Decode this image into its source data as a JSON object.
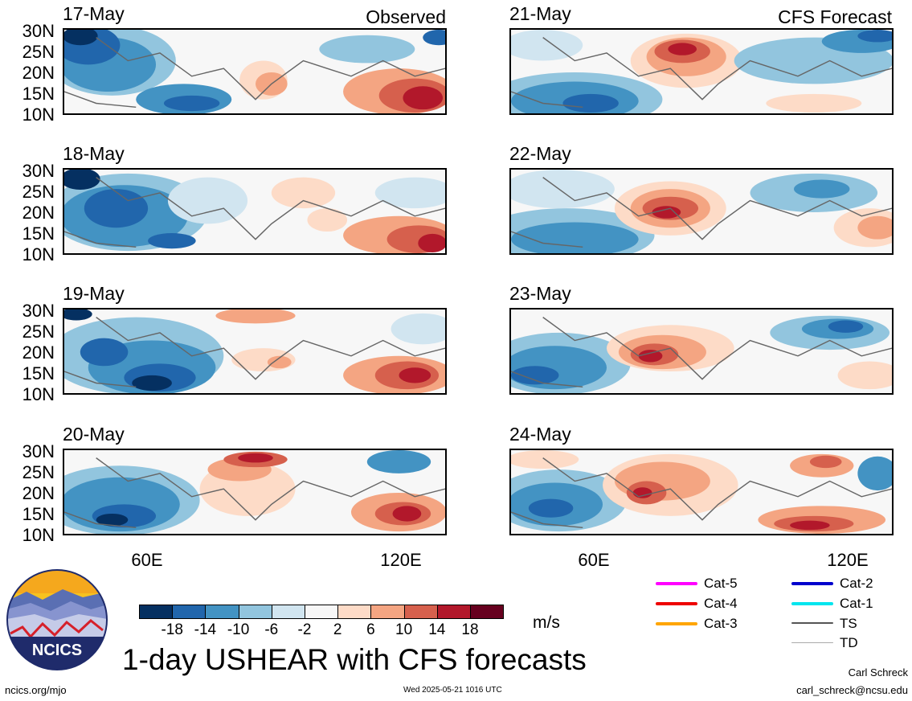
{
  "panels": {
    "left": [
      {
        "date": "17-May",
        "tag": "Observed"
      },
      {
        "date": "18-May",
        "tag": ""
      },
      {
        "date": "19-May",
        "tag": ""
      },
      {
        "date": "20-May",
        "tag": ""
      }
    ],
    "right": [
      {
        "date": "21-May",
        "tag": "CFS Forecast"
      },
      {
        "date": "22-May",
        "tag": ""
      },
      {
        "date": "23-May",
        "tag": ""
      },
      {
        "date": "24-May",
        "tag": ""
      }
    ]
  },
  "lat_labels": [
    "30N",
    "25N",
    "20N",
    "15N",
    "10N"
  ],
  "lon_labels": [
    "60E",
    "120E"
  ],
  "colorbar": {
    "ticks": [
      "-18",
      "-14",
      "-10",
      "-6",
      "-2",
      "2",
      "6",
      "10",
      "14",
      "18"
    ],
    "colors": [
      "#053061",
      "#2166ac",
      "#4393c3",
      "#92c5de",
      "#d1e5f0",
      "#f7f7f7",
      "#fddbc7",
      "#f4a582",
      "#d6604d",
      "#b2182b",
      "#67001f"
    ],
    "units": "m/s"
  },
  "legend": [
    {
      "label": "Cat-5",
      "color": "#ff00ff"
    },
    {
      "label": "Cat-4",
      "color": "#ee0000"
    },
    {
      "label": "Cat-3",
      "color": "#ffa500"
    },
    {
      "label": "Cat-2",
      "color": "#0000cd"
    },
    {
      "label": "Cat-1",
      "color": "#00e5ee"
    },
    {
      "label": "TS",
      "color": "#555555"
    },
    {
      "label": "TD",
      "color": "#aaaaaa"
    }
  ],
  "logo_text": "NCICS",
  "title": "1-day USHEAR with CFS forecasts",
  "author_name": "Carl Schreck",
  "author_email": "carl_schreck@ncsu.edu",
  "website": "ncics.org/mjo",
  "timestamp": "Wed 2025-05-21 1016 UTC"
}
